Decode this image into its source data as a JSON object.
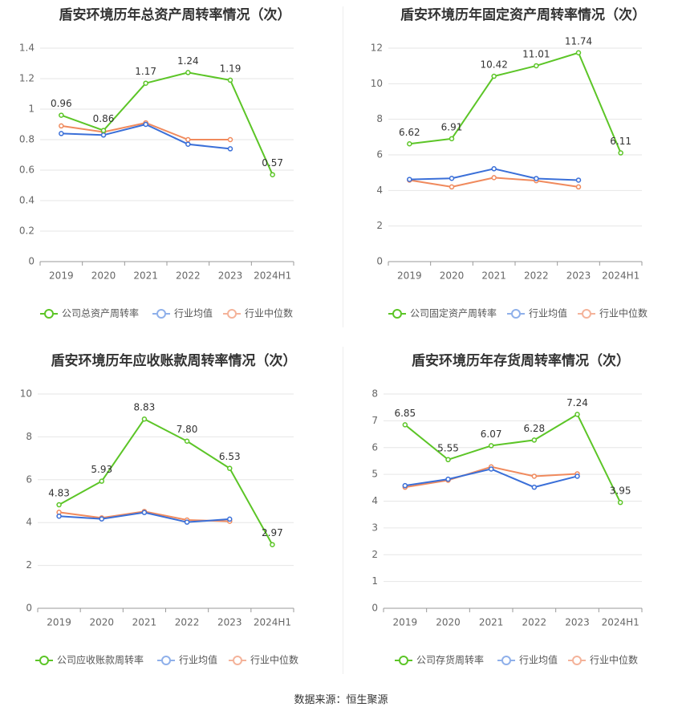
{
  "footer": {
    "source": "数据来源：恒生聚源"
  },
  "colors": {
    "company": "#5cc527",
    "avg": "#3a6fd8",
    "median": "#f08a5d",
    "legend_avg": "#8fb0ea",
    "legend_median": "#f4b39a",
    "grid": "#e6e6e6",
    "axis_text": "#666666"
  },
  "chart_data": [
    {
      "type": "line",
      "title": "盾安环境历年总资产周转率情况（次）",
      "categories": [
        "2019",
        "2020",
        "2021",
        "2022",
        "2023",
        "2024H1"
      ],
      "yticks": [
        "0",
        "0.2",
        "0.4",
        "0.6",
        "0.8",
        "1",
        "1.2",
        "1.4"
      ],
      "ylim": [
        0,
        1.4
      ],
      "grid": true,
      "legend_position": "bottom",
      "series": [
        {
          "name": "公司总资产周转率",
          "values": [
            0.96,
            0.86,
            1.17,
            1.24,
            1.19,
            0.57
          ],
          "labels": [
            "0.96",
            "0.86",
            "1.17",
            "1.24",
            "1.19",
            "0.57"
          ]
        },
        {
          "name": "行业均值",
          "values": [
            0.84,
            0.83,
            0.9,
            0.77,
            0.74,
            null
          ]
        },
        {
          "name": "行业中位数",
          "values": [
            0.89,
            0.85,
            0.91,
            0.8,
            0.8,
            null
          ]
        }
      ]
    },
    {
      "type": "line",
      "title": "盾安环境历年固定资产周转率情况（次）",
      "categories": [
        "2019",
        "2020",
        "2021",
        "2022",
        "2023",
        "2024H1"
      ],
      "yticks": [
        "0",
        "2",
        "4",
        "6",
        "8",
        "10",
        "12"
      ],
      "ylim": [
        0,
        12
      ],
      "grid": true,
      "legend_position": "bottom",
      "series": [
        {
          "name": "公司固定资产周转率",
          "values": [
            6.62,
            6.91,
            10.42,
            11.01,
            11.74,
            6.11
          ],
          "labels": [
            "6.62",
            "6.91",
            "10.42",
            "11.01",
            "11.74",
            "6.11"
          ]
        },
        {
          "name": "行业均值",
          "values": [
            4.62,
            4.68,
            5.22,
            4.67,
            4.58,
            null
          ]
        },
        {
          "name": "行业中位数",
          "values": [
            4.58,
            4.2,
            4.72,
            4.55,
            4.2,
            null
          ]
        }
      ]
    },
    {
      "type": "line",
      "title": "盾安环境历年应收账款周转率情况（次）",
      "categories": [
        "2019",
        "2020",
        "2021",
        "2022",
        "2023",
        "2024H1"
      ],
      "yticks": [
        "0",
        "2",
        "4",
        "6",
        "8",
        "10"
      ],
      "ylim": [
        0,
        10
      ],
      "grid": true,
      "legend_position": "bottom",
      "series": [
        {
          "name": "公司应收账款周转率",
          "values": [
            4.83,
            5.93,
            8.83,
            7.8,
            6.53,
            2.97
          ],
          "labels": [
            "4.83",
            "5.93",
            "8.83",
            "7.80",
            "6.53",
            "2.97"
          ]
        },
        {
          "name": "行业均值",
          "values": [
            4.3,
            4.17,
            4.47,
            4.02,
            4.16,
            null
          ]
        },
        {
          "name": "行业中位数",
          "values": [
            4.48,
            4.22,
            4.52,
            4.12,
            4.06,
            null
          ]
        }
      ]
    },
    {
      "type": "line",
      "title": "盾安环境历年存货周转率情况（次）",
      "categories": [
        "2019",
        "2020",
        "2021",
        "2022",
        "2023",
        "2024H1"
      ],
      "yticks": [
        "0",
        "1",
        "2",
        "3",
        "4",
        "5",
        "6",
        "7",
        "8"
      ],
      "ylim": [
        0,
        8
      ],
      "grid": true,
      "legend_position": "bottom",
      "series": [
        {
          "name": "公司存货周转率",
          "values": [
            6.85,
            5.55,
            6.07,
            6.28,
            7.24,
            3.95
          ],
          "labels": [
            "6.85",
            "5.55",
            "6.07",
            "6.28",
            "7.24",
            "3.95"
          ]
        },
        {
          "name": "行业均值",
          "values": [
            4.58,
            4.82,
            5.2,
            4.52,
            4.93,
            null
          ]
        },
        {
          "name": "行业中位数",
          "values": [
            4.52,
            4.78,
            5.28,
            4.93,
            5.02,
            null
          ]
        }
      ]
    }
  ]
}
